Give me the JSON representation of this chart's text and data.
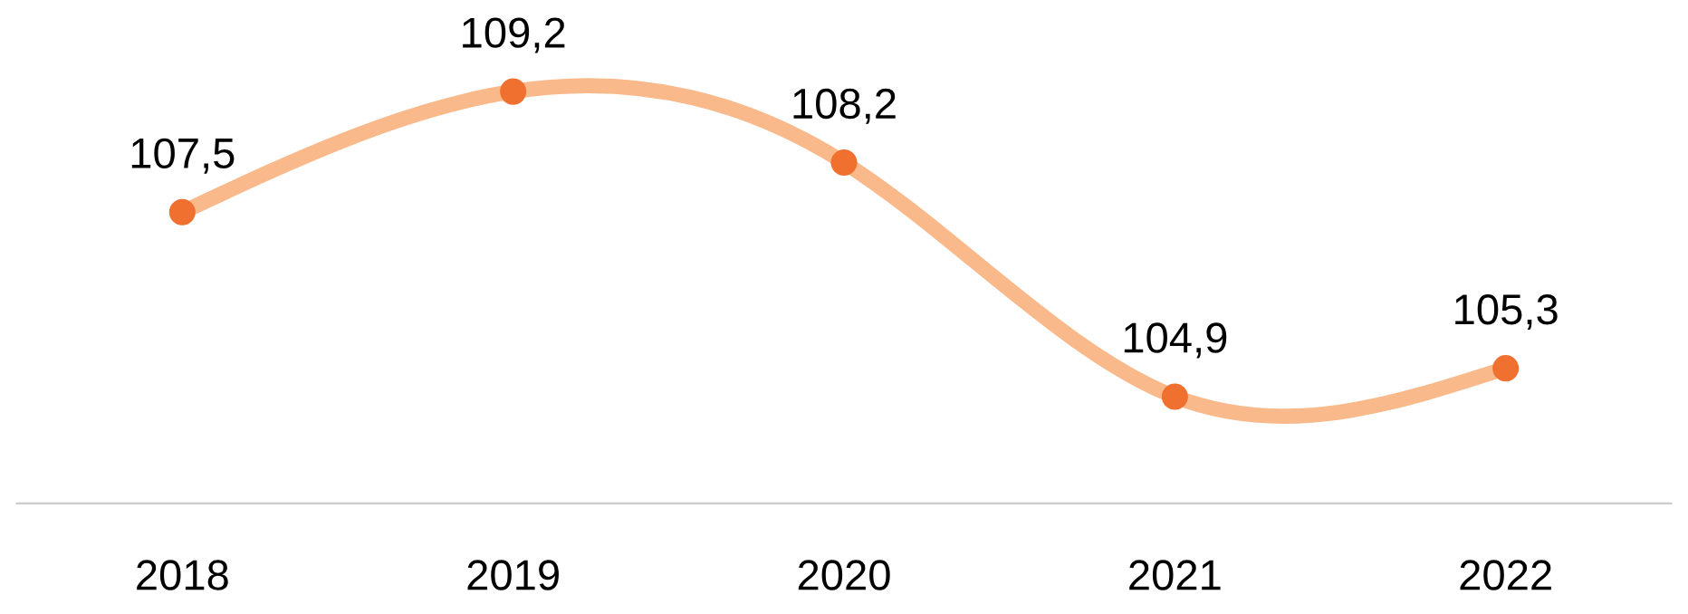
{
  "chart_data": {
    "type": "line",
    "categories": [
      "2018",
      "2019",
      "2020",
      "2021",
      "2022"
    ],
    "series": [
      {
        "color": "#f9b98a",
        "colors": [
          "#f07030",
          "#f07030",
          "#f07030",
          "#f07030",
          "#f07030"
        ],
        "values": [
          107.5,
          109.2,
          108.2,
          104.9,
          105.3
        ],
        "value_labels": [
          "107,5",
          "109,2",
          "108,2",
          "104,9",
          "105,3"
        ]
      }
    ],
    "marker": "circle",
    "line_style": "solid",
    "grid": false,
    "legend": false
  }
}
